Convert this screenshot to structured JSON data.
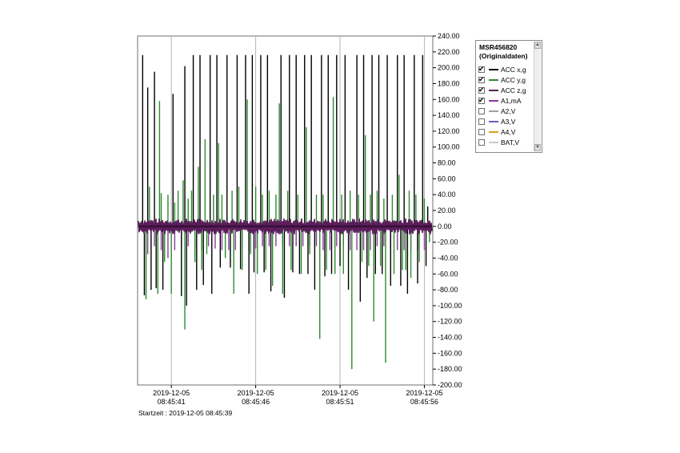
{
  "chart_data": {
    "type": "line",
    "ylim": [
      -200,
      240
    ],
    "yticks": [
      "240.00",
      "220.00",
      "200.00",
      "180.00",
      "160.00",
      "140.00",
      "120.00",
      "100.00",
      "80.00",
      "60.00",
      "40.00",
      "20.00",
      "0.00",
      "-20.00",
      "-40.00",
      "-60.00",
      "-80.00",
      "-100.00",
      "-120.00",
      "-140.00",
      "-160.00",
      "-180.00",
      "-200.00"
    ],
    "x_start": 39,
    "x_end": 56.5,
    "x_unit": "seconds after 08:45:00",
    "xticks": [
      {
        "date": "2019-12-05",
        "time": "08:45:41",
        "value": 41
      },
      {
        "date": "2019-12-05",
        "time": "08:45:46",
        "value": 46
      },
      {
        "date": "2019-12-05",
        "time": "08:45:51",
        "value": 51
      },
      {
        "date": "2019-12-05",
        "time": "08:45:56",
        "value": 56
      }
    ],
    "vertical_gridlines": true,
    "horizontal_gridlines": false,
    "legend_position": "right",
    "series": [
      {
        "name": "ACC x,g",
        "color": "#000000",
        "spikes": [
          [
            39.3,
            216
          ],
          [
            39.4,
            -87
          ],
          [
            39.6,
            175
          ],
          [
            39.8,
            -80
          ],
          [
            40.0,
            195
          ],
          [
            40.1,
            -78
          ],
          [
            40.5,
            -80
          ],
          [
            41.1,
            167
          ],
          [
            41.6,
            -88
          ],
          [
            41.8,
            202
          ],
          [
            41.9,
            -100
          ],
          [
            42.3,
            216
          ],
          [
            42.5,
            -80
          ],
          [
            42.7,
            216
          ],
          [
            42.9,
            -74
          ],
          [
            43.3,
            216
          ],
          [
            43.4,
            -85
          ],
          [
            43.7,
            216
          ],
          [
            43.9,
            -52
          ],
          [
            44.3,
            216
          ],
          [
            44.5,
            -52
          ],
          [
            44.9,
            216
          ],
          [
            45.1,
            -54
          ],
          [
            45.4,
            216
          ],
          [
            45.6,
            -85
          ],
          [
            45.8,
            216
          ],
          [
            45.9,
            -58
          ],
          [
            46.3,
            216
          ],
          [
            46.5,
            -58
          ],
          [
            46.7,
            216
          ],
          [
            46.9,
            -82
          ],
          [
            47.5,
            216
          ],
          [
            47.7,
            -90
          ],
          [
            48.0,
            216
          ],
          [
            48.2,
            -58
          ],
          [
            48.4,
            216
          ],
          [
            48.6,
            -60
          ],
          [
            48.9,
            216
          ],
          [
            49.1,
            -60
          ],
          [
            49.3,
            216
          ],
          [
            49.5,
            -80
          ],
          [
            49.9,
            216
          ],
          [
            50.1,
            -63
          ],
          [
            50.3,
            216
          ],
          [
            50.5,
            -60
          ],
          [
            50.8,
            216
          ],
          [
            51.0,
            -50
          ],
          [
            51.3,
            216
          ],
          [
            51.5,
            -80
          ],
          [
            52.0,
            216
          ],
          [
            52.2,
            -95
          ],
          [
            52.4,
            216
          ],
          [
            52.6,
            -65
          ],
          [
            52.9,
            216
          ],
          [
            53.1,
            -60
          ],
          [
            53.3,
            216
          ],
          [
            53.5,
            -60
          ],
          [
            53.8,
            216
          ],
          [
            54.0,
            -75
          ],
          [
            54.4,
            216
          ],
          [
            54.6,
            -75
          ],
          [
            54.8,
            216
          ],
          [
            55.0,
            -85
          ],
          [
            55.4,
            216
          ],
          [
            55.6,
            -72
          ],
          [
            55.9,
            216
          ],
          [
            56.1,
            -50
          ],
          [
            56.2,
            25
          ]
        ]
      },
      {
        "name": "ACC y,g",
        "color": "#2e8b2e",
        "spikes": [
          [
            39.5,
            -92
          ],
          [
            39.7,
            50
          ],
          [
            40.2,
            -85
          ],
          [
            40.3,
            158
          ],
          [
            40.4,
            42
          ],
          [
            40.6,
            -45
          ],
          [
            40.8,
            40
          ],
          [
            41.0,
            -85
          ],
          [
            41.2,
            30
          ],
          [
            41.4,
            45
          ],
          [
            41.7,
            58
          ],
          [
            41.8,
            -130
          ],
          [
            42.0,
            35
          ],
          [
            42.2,
            45
          ],
          [
            42.4,
            -45
          ],
          [
            42.6,
            75
          ],
          [
            42.8,
            -55
          ],
          [
            43.0,
            110
          ],
          [
            43.1,
            -35
          ],
          [
            43.5,
            40
          ],
          [
            43.8,
            105
          ],
          [
            44.0,
            40
          ],
          [
            44.2,
            -40
          ],
          [
            44.6,
            45
          ],
          [
            44.7,
            -85
          ],
          [
            45.0,
            50
          ],
          [
            45.2,
            -55
          ],
          [
            45.5,
            160
          ],
          [
            45.7,
            -35
          ],
          [
            46.0,
            50
          ],
          [
            46.1,
            -60
          ],
          [
            46.4,
            40
          ],
          [
            46.6,
            -55
          ],
          [
            46.8,
            45
          ],
          [
            47.0,
            -75
          ],
          [
            47.2,
            40
          ],
          [
            47.4,
            155
          ],
          [
            47.6,
            -85
          ],
          [
            47.9,
            45
          ],
          [
            48.1,
            -55
          ],
          [
            48.5,
            40
          ],
          [
            48.7,
            -60
          ],
          [
            49.0,
            125
          ],
          [
            49.2,
            -35
          ],
          [
            49.6,
            40
          ],
          [
            49.8,
            -142
          ],
          [
            50.0,
            40
          ],
          [
            50.2,
            -55
          ],
          [
            50.6,
            163
          ],
          [
            50.7,
            -60
          ],
          [
            51.1,
            40
          ],
          [
            51.2,
            -60
          ],
          [
            51.6,
            45
          ],
          [
            51.7,
            -180
          ],
          [
            52.1,
            40
          ],
          [
            52.3,
            -45
          ],
          [
            52.5,
            115
          ],
          [
            52.7,
            -50
          ],
          [
            52.8,
            40
          ],
          [
            53.0,
            -120
          ],
          [
            53.2,
            45
          ],
          [
            53.4,
            -50
          ],
          [
            53.6,
            35
          ],
          [
            53.7,
            -172
          ],
          [
            54.1,
            40
          ],
          [
            54.2,
            -60
          ],
          [
            54.5,
            65
          ],
          [
            54.7,
            -55
          ],
          [
            54.9,
            -55
          ],
          [
            55.1,
            45
          ],
          [
            55.2,
            -65
          ],
          [
            55.5,
            40
          ],
          [
            55.7,
            -45
          ],
          [
            56.0,
            35
          ],
          [
            56.3,
            -20
          ]
        ]
      },
      {
        "name": "ACC z,g",
        "color": "#5a1f5a",
        "baseline": 0,
        "noise": 10
      },
      {
        "name": "A1,mA",
        "color": "#8b3a9b",
        "spikes": [
          [
            39.6,
            -35
          ],
          [
            40.0,
            -25
          ],
          [
            40.4,
            -30
          ],
          [
            40.8,
            -40
          ],
          [
            41.2,
            -30
          ],
          [
            41.6,
            -25
          ],
          [
            42.0,
            -25
          ],
          [
            42.4,
            -30
          ],
          [
            42.8,
            -30
          ],
          [
            43.2,
            -25
          ],
          [
            43.6,
            -28
          ],
          [
            44.0,
            -30
          ],
          [
            44.4,
            -30
          ],
          [
            44.8,
            -30
          ],
          [
            45.2,
            -25
          ],
          [
            45.6,
            -30
          ],
          [
            46.0,
            -28
          ],
          [
            46.4,
            -25
          ],
          [
            46.8,
            -25
          ],
          [
            47.2,
            -25
          ],
          [
            47.6,
            -25
          ],
          [
            48.0,
            -25
          ],
          [
            48.4,
            -25
          ],
          [
            48.8,
            -25
          ],
          [
            49.2,
            -25
          ],
          [
            49.6,
            -25
          ],
          [
            50.0,
            -30
          ],
          [
            50.4,
            -30
          ],
          [
            50.8,
            -25
          ],
          [
            51.2,
            -25
          ],
          [
            51.6,
            -30
          ],
          [
            52.0,
            -30
          ],
          [
            52.4,
            -30
          ],
          [
            52.8,
            -30
          ],
          [
            53.2,
            -25
          ],
          [
            53.6,
            -25
          ],
          [
            54.0,
            -28
          ],
          [
            54.4,
            -30
          ],
          [
            54.8,
            -30
          ],
          [
            55.2,
            -30
          ],
          [
            55.6,
            -30
          ],
          [
            56.0,
            -30
          ]
        ]
      }
    ]
  },
  "legend": {
    "title_line1": "MSR456820",
    "title_line2": "(Originaldaten)",
    "items": [
      {
        "label": "ACC x,g",
        "checked": true,
        "color": "#000000"
      },
      {
        "label": "ACC y,g",
        "checked": true,
        "color": "#2e8b2e"
      },
      {
        "label": "ACC z,g",
        "checked": true,
        "color": "#5a1f5a"
      },
      {
        "label": "A1,mA",
        "checked": true,
        "color": "#8b3a9b"
      },
      {
        "label": "A2,V",
        "checked": false,
        "color": "#a0a0a0"
      },
      {
        "label": "A3,V",
        "checked": false,
        "color": "#6a5acd"
      },
      {
        "label": "A4,V",
        "checked": false,
        "color": "#d4a017"
      },
      {
        "label": "BAT,V",
        "checked": false,
        "color": "#c8c8c8"
      }
    ],
    "scroll_up_icon": "triangle-up",
    "scroll_down_icon": "triangle-down"
  },
  "startzeit_text": "Startzeit : 2019-12-05 08:45:39"
}
